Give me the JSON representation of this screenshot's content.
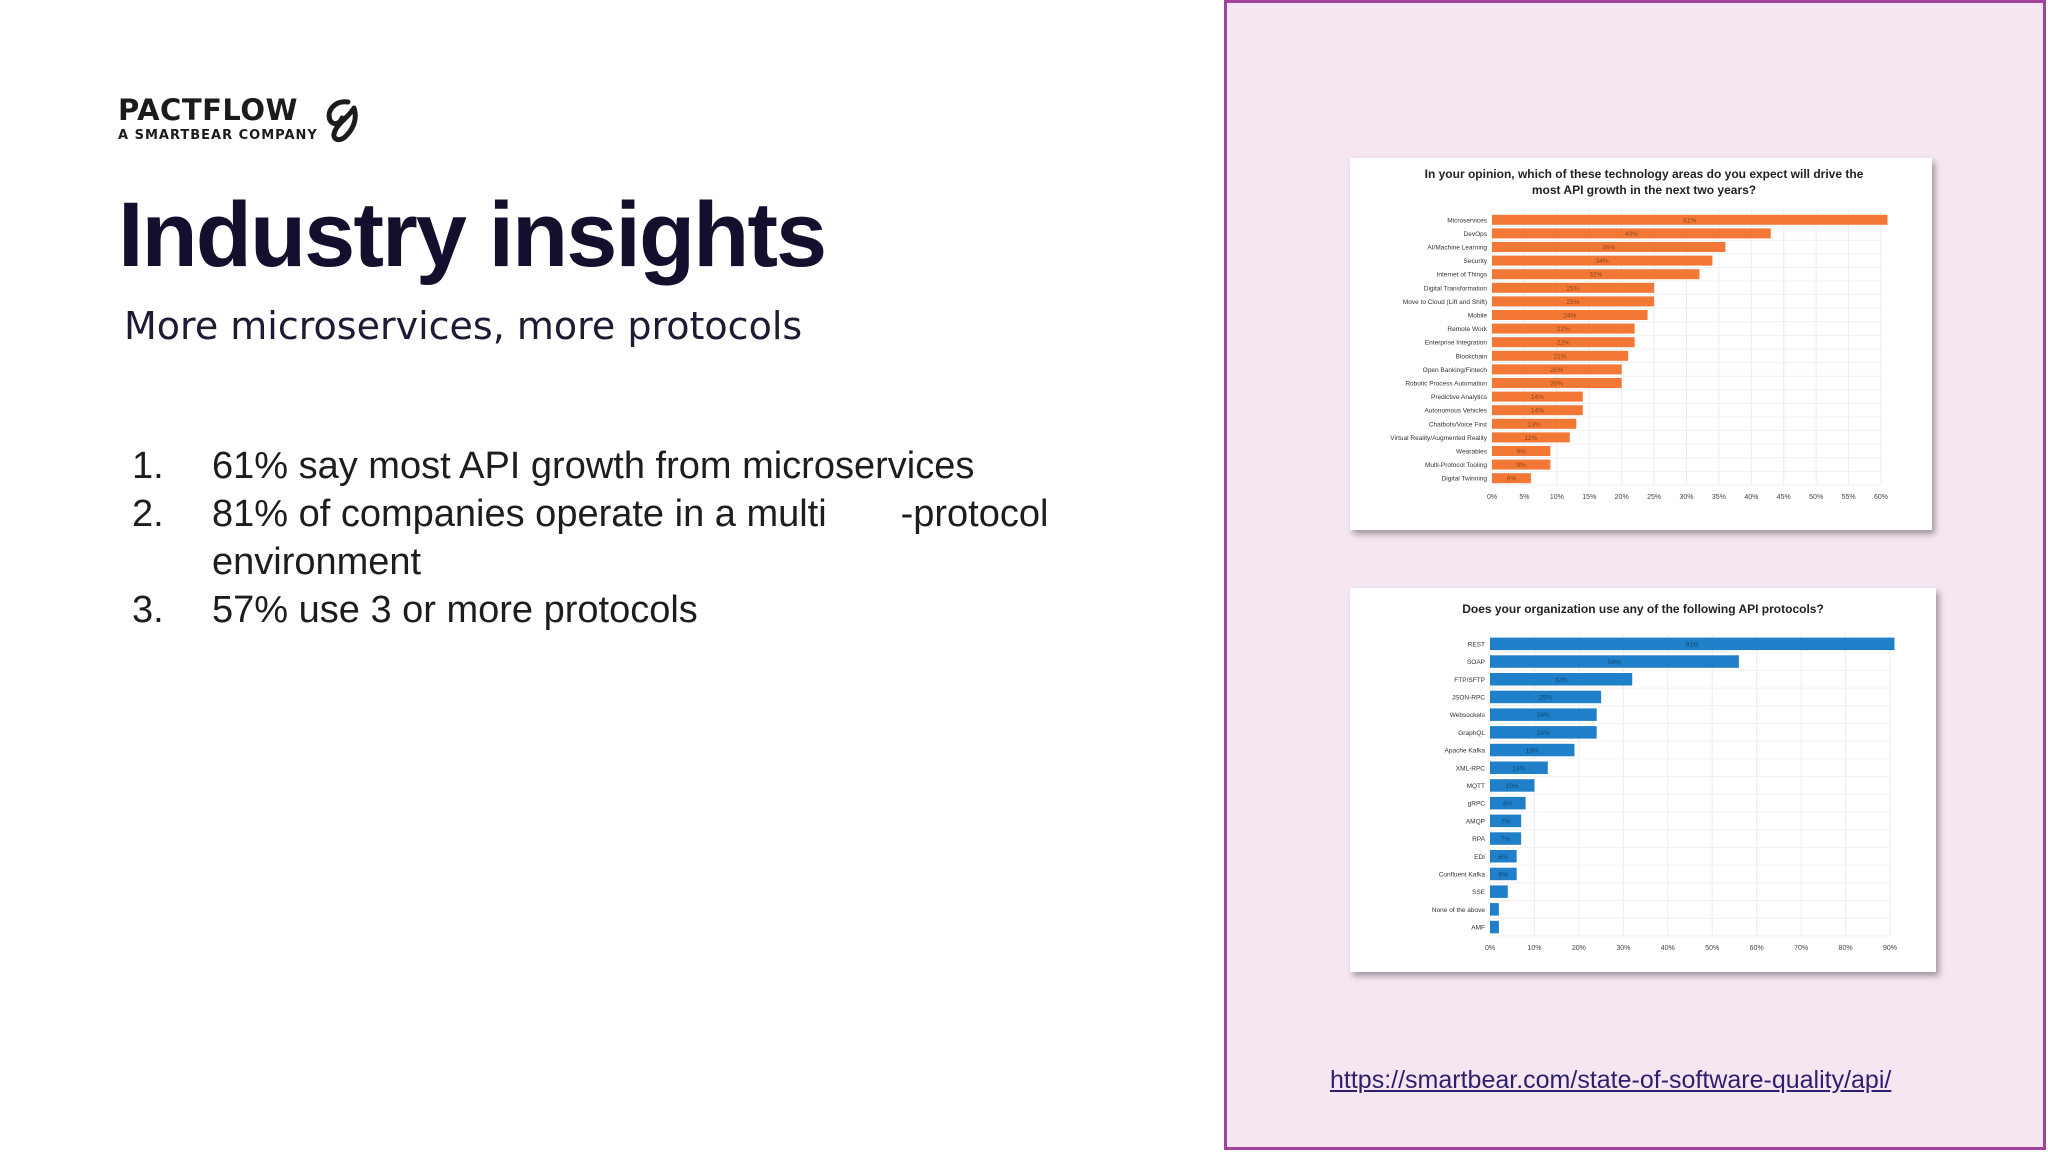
{
  "brand": {
    "name": "PACTFLOW",
    "tagline": "A SMARTBEAR COMPANY",
    "logo_icon": "pactflow-logo-icon"
  },
  "slide": {
    "title": "Industry insights",
    "subtitle": "More microservices, more protocols",
    "points": [
      {
        "num": "1.",
        "text": "61% say most API growth from microservices"
      },
      {
        "num": "2.",
        "text": "81% of companies operate in a multi       -protocol environment"
      },
      {
        "num": "3.",
        "text": "57% use 3 or more protocols"
      }
    ]
  },
  "source_link": "https://smartbear.com/state-of-software-quality/api/",
  "chart_data": [
    {
      "type": "bar",
      "orientation": "horizontal",
      "title": "In your opinion, which of these technology areas do you expect will drive the most API growth in the next two years?",
      "title_lines": [
        "In your opinion, which of these technology areas do you expect will drive the",
        "most API growth in the next two years?"
      ],
      "bar_color": "#f47835",
      "categories": [
        "Microservices",
        "DevOps",
        "AI/Machine Learning",
        "Security",
        "Internet of Things",
        "Digital Transformation",
        "Move to Cloud (Lift and Shift)",
        "Mobile",
        "Remote Work",
        "Enterprise Integration",
        "Blockchain",
        "Open Banking/Fintech",
        "Robotic Process Automation",
        "Predictive Analytics",
        "Autonomous Vehicles",
        "Chatbots/Voice First",
        "Virtual Reality/Augmented Reality",
        "Wearables",
        "Multi-Protocol Tooling",
        "Digital Twinning"
      ],
      "values": [
        61,
        43,
        36,
        34,
        32,
        25,
        25,
        24,
        22,
        22,
        21,
        20,
        20,
        14,
        14,
        13,
        12,
        9,
        9,
        6
      ],
      "data_labels": [
        "61%",
        "43%",
        "36%",
        "34%",
        "32%",
        "25%",
        "25%",
        "24%",
        "22%",
        "22%",
        "21%",
        "20%",
        "20%",
        "14%",
        "14%",
        "13%",
        "12%",
        "9%",
        "9%",
        "6%"
      ],
      "xticks": [
        "0%",
        "5%",
        "10%",
        "15%",
        "20%",
        "25%",
        "30%",
        "35%",
        "40%",
        "45%",
        "50%",
        "55%",
        "60%"
      ],
      "xlim": [
        0,
        60
      ],
      "grid": true
    },
    {
      "type": "bar",
      "orientation": "horizontal",
      "title": "Does your organization use any of the following API protocols?",
      "title_lines": [
        "Does your organization use any of the following API protocols?"
      ],
      "bar_color": "#1f7fc8",
      "categories": [
        "REST",
        "SOAP",
        "FTP/SFTP",
        "JSON-RPC",
        "Websockets",
        "GraphQL",
        "Apache Kafka",
        "XML-RPC",
        "MQTT",
        "gRPC",
        "AMQP",
        "RPA",
        "EDI",
        "Confluent Kafka",
        "SSE",
        "None of the above",
        "AMF"
      ],
      "values": [
        91,
        56,
        32,
        25,
        24,
        24,
        19,
        13,
        10,
        8,
        7,
        7,
        6,
        6,
        4,
        2,
        2
      ],
      "data_labels": [
        "91%",
        "56%",
        "32%",
        "25%",
        "24%",
        "24%",
        "19%",
        "13%",
        "10%",
        "8%",
        "7%",
        "7%",
        "6%",
        "6%",
        "",
        "",
        ""
      ],
      "xticks": [
        "0%",
        "10%",
        "20%",
        "30%",
        "40%",
        "50%",
        "60%",
        "70%",
        "80%",
        "90%"
      ],
      "xlim": [
        0,
        90
      ],
      "grid": true
    }
  ]
}
